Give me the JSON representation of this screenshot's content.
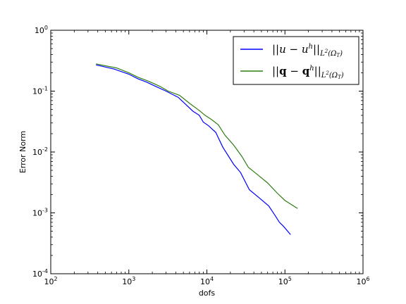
{
  "chart_data": {
    "type": "line",
    "xlabel": "dofs",
    "ylabel": "Error Norm",
    "xscale": "log",
    "yscale": "log",
    "xlim": [
      100,
      1000000
    ],
    "ylim": [
      0.0001,
      1
    ],
    "x_ticks": [
      {
        "base": "10",
        "exp": "2"
      },
      {
        "base": "10",
        "exp": "3"
      },
      {
        "base": "10",
        "exp": "4"
      },
      {
        "base": "10",
        "exp": "5"
      },
      {
        "base": "10",
        "exp": "6"
      }
    ],
    "y_ticks": [
      {
        "base": "10",
        "exp": "0"
      },
      {
        "base": "10",
        "exp": "-1"
      },
      {
        "base": "10",
        "exp": "-2"
      },
      {
        "base": "10",
        "exp": "-3"
      },
      {
        "base": "10",
        "exp": "-4"
      }
    ],
    "grid": false,
    "legend_position": "top-right",
    "series": [
      {
        "name": "||u − u^h||_{L²(Ω_T)}",
        "color": "#0000ff",
        "x": [
          380,
          650,
          1000,
          1300,
          1700,
          2200,
          3000,
          4300,
          5400,
          6600,
          8000,
          9000,
          10500,
          13000,
          16000,
          22000,
          27000,
          35000,
          46000,
          62000,
          75000,
          85000,
          96000,
          118000
        ],
        "y": [
          0.27,
          0.23,
          0.19,
          0.16,
          0.14,
          0.12,
          0.1,
          0.079,
          0.06,
          0.047,
          0.04,
          0.031,
          0.027,
          0.021,
          0.012,
          0.0063,
          0.0046,
          0.0024,
          0.0018,
          0.0013,
          0.0009,
          0.0007,
          0.0006,
          0.00044
        ]
      },
      {
        "name": "||q − q^h||_{L²(Ω_T)}",
        "color": "#2e7d12",
        "x": [
          380,
          700,
          1000,
          1300,
          1800,
          2500,
          3200,
          4500,
          6000,
          8000,
          9500,
          11500,
          14000,
          17000,
          22000,
          28000,
          34000,
          45000,
          60000,
          80000,
          100000,
          145000
        ],
        "y": [
          0.28,
          0.24,
          0.2,
          0.17,
          0.145,
          0.12,
          0.1,
          0.085,
          0.063,
          0.048,
          0.04,
          0.034,
          0.028,
          0.019,
          0.013,
          0.0085,
          0.0056,
          0.0042,
          0.0031,
          0.0021,
          0.0016,
          0.00118
        ]
      }
    ]
  }
}
